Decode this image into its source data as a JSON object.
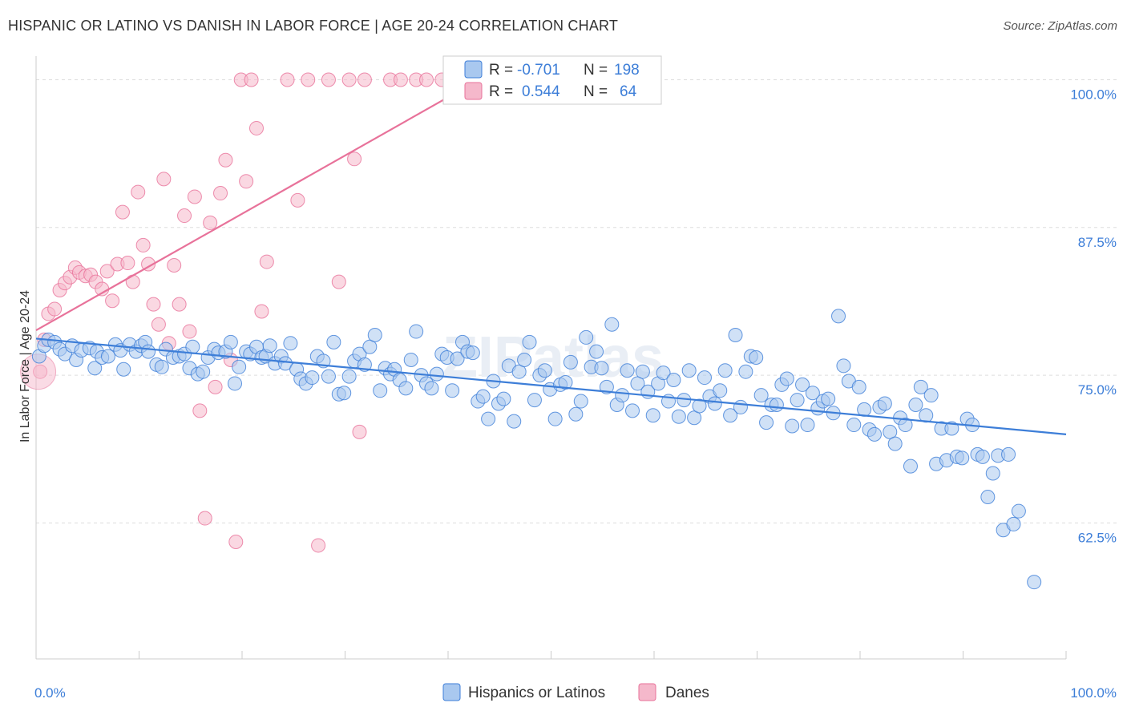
{
  "title": "HISPANIC OR LATINO VS DANISH IN LABOR FORCE | AGE 20-24 CORRELATION CHART",
  "source": "Source: ZipAtlas.com",
  "colors": {
    "blue": "#3d7ed8",
    "blue_fill": "#a9c8ef",
    "pink": "#e8729a",
    "pink_fill": "#f5b8cb",
    "grid": "#dddddd",
    "axis": "#cccccc"
  },
  "chart_data": {
    "type": "scatter",
    "ylabel": "In Labor Force | Age 20-24",
    "xlim": [
      0,
      100
    ],
    "ylim": [
      51,
      102
    ],
    "x_tick_labels": [
      "0.0%",
      "100.0%"
    ],
    "y_ticks": [
      {
        "value": 100.0,
        "label": "100.0%"
      },
      {
        "value": 87.5,
        "label": "87.5%"
      },
      {
        "value": 75.0,
        "label": "75.0%"
      },
      {
        "value": 62.5,
        "label": "62.5%"
      }
    ],
    "legend_stats": [
      {
        "r_label": "R =",
        "r_value": "-0.701",
        "n_label": "N =",
        "n_value": "198"
      },
      {
        "r_label": "R =",
        "r_value": "0.544",
        "n_label": "N =",
        "n_value": "64"
      }
    ],
    "series": [
      {
        "name": "Hispanics or Latinos",
        "trend": {
          "x": [
            0,
            100
          ],
          "y": [
            78.1,
            70.0
          ]
        },
        "points": [
          [
            0.3,
            76.6
          ],
          [
            0.8,
            77.5
          ],
          [
            1.2,
            78.0
          ],
          [
            1.8,
            77.8
          ],
          [
            2.3,
            77.2
          ],
          [
            2.8,
            76.8
          ],
          [
            3.5,
            77.5
          ],
          [
            3.9,
            76.3
          ],
          [
            4.4,
            77.1
          ],
          [
            5.2,
            77.3
          ],
          [
            5.9,
            77.0
          ],
          [
            5.7,
            75.6
          ],
          [
            6.4,
            76.5
          ],
          [
            7.0,
            76.6
          ],
          [
            7.7,
            77.6
          ],
          [
            8.2,
            77.1
          ],
          [
            8.5,
            75.5
          ],
          [
            9.1,
            77.6
          ],
          [
            9.7,
            77.0
          ],
          [
            10.2,
            77.5
          ],
          [
            10.6,
            77.8
          ],
          [
            10.9,
            77.0
          ],
          [
            11.7,
            75.9
          ],
          [
            12.2,
            75.7
          ],
          [
            12.6,
            77.2
          ],
          [
            13.3,
            76.5
          ],
          [
            13.9,
            76.6
          ],
          [
            14.4,
            76.8
          ],
          [
            14.9,
            75.6
          ],
          [
            15.2,
            77.4
          ],
          [
            15.7,
            75.1
          ],
          [
            16.2,
            75.3
          ],
          [
            16.7,
            76.5
          ],
          [
            17.3,
            77.2
          ],
          [
            17.7,
            76.9
          ],
          [
            18.4,
            77.0
          ],
          [
            18.9,
            77.8
          ],
          [
            19.3,
            74.3
          ],
          [
            19.7,
            75.7
          ],
          [
            20.4,
            77.0
          ],
          [
            20.8,
            76.8
          ],
          [
            21.4,
            77.4
          ],
          [
            21.9,
            76.5
          ],
          [
            22.3,
            76.6
          ],
          [
            22.7,
            77.5
          ],
          [
            23.2,
            76.0
          ],
          [
            23.8,
            76.6
          ],
          [
            24.2,
            76.0
          ],
          [
            24.7,
            77.7
          ],
          [
            25.3,
            75.5
          ],
          [
            25.7,
            74.7
          ],
          [
            26.2,
            74.3
          ],
          [
            26.8,
            74.8
          ],
          [
            27.3,
            76.6
          ],
          [
            27.9,
            76.2
          ],
          [
            28.4,
            74.9
          ],
          [
            28.9,
            77.8
          ],
          [
            29.4,
            73.4
          ],
          [
            29.9,
            73.5
          ],
          [
            30.4,
            74.9
          ],
          [
            30.9,
            76.2
          ],
          [
            31.4,
            76.8
          ],
          [
            31.9,
            75.9
          ],
          [
            32.4,
            77.4
          ],
          [
            32.9,
            78.4
          ],
          [
            33.4,
            73.7
          ],
          [
            33.9,
            75.6
          ],
          [
            34.4,
            75.1
          ],
          [
            34.8,
            75.5
          ],
          [
            35.3,
            74.6
          ],
          [
            35.9,
            73.9
          ],
          [
            36.4,
            76.3
          ],
          [
            36.9,
            78.7
          ],
          [
            37.4,
            75.0
          ],
          [
            37.9,
            74.3
          ],
          [
            38.4,
            73.9
          ],
          [
            38.9,
            75.1
          ],
          [
            39.4,
            76.8
          ],
          [
            39.9,
            76.5
          ],
          [
            40.4,
            73.7
          ],
          [
            40.9,
            76.4
          ],
          [
            41.4,
            77.8
          ],
          [
            41.9,
            77.0
          ],
          [
            42.4,
            76.9
          ],
          [
            42.9,
            72.8
          ],
          [
            43.4,
            73.2
          ],
          [
            43.9,
            71.3
          ],
          [
            44.4,
            74.5
          ],
          [
            44.9,
            72.6
          ],
          [
            45.4,
            73.0
          ],
          [
            45.9,
            75.8
          ],
          [
            46.4,
            71.1
          ],
          [
            46.9,
            75.3
          ],
          [
            47.4,
            76.3
          ],
          [
            47.9,
            77.8
          ],
          [
            48.4,
            72.9
          ],
          [
            48.9,
            75.0
          ],
          [
            49.4,
            75.4
          ],
          [
            49.9,
            73.8
          ],
          [
            50.4,
            71.3
          ],
          [
            50.9,
            74.2
          ],
          [
            51.4,
            74.4
          ],
          [
            51.9,
            76.1
          ],
          [
            52.4,
            71.7
          ],
          [
            52.9,
            72.8
          ],
          [
            53.4,
            78.2
          ],
          [
            53.9,
            75.7
          ],
          [
            54.4,
            77.0
          ],
          [
            54.9,
            75.6
          ],
          [
            55.4,
            74.0
          ],
          [
            55.9,
            79.3
          ],
          [
            56.4,
            72.5
          ],
          [
            56.9,
            73.3
          ],
          [
            57.4,
            75.4
          ],
          [
            57.9,
            72.0
          ],
          [
            58.4,
            74.3
          ],
          [
            58.9,
            75.3
          ],
          [
            59.4,
            73.6
          ],
          [
            59.9,
            71.6
          ],
          [
            60.4,
            74.3
          ],
          [
            60.9,
            75.2
          ],
          [
            61.4,
            72.8
          ],
          [
            61.9,
            74.6
          ],
          [
            62.4,
            71.5
          ],
          [
            62.9,
            72.9
          ],
          [
            63.4,
            75.4
          ],
          [
            63.9,
            71.4
          ],
          [
            64.4,
            72.4
          ],
          [
            64.9,
            74.8
          ],
          [
            65.4,
            73.2
          ],
          [
            65.9,
            72.6
          ],
          [
            66.4,
            73.7
          ],
          [
            66.9,
            75.4
          ],
          [
            67.4,
            71.6
          ],
          [
            67.9,
            78.4
          ],
          [
            68.4,
            72.3
          ],
          [
            68.9,
            75.3
          ],
          [
            69.4,
            76.6
          ],
          [
            69.9,
            76.5
          ],
          [
            70.4,
            73.3
          ],
          [
            70.9,
            71.0
          ],
          [
            71.4,
            72.5
          ],
          [
            71.9,
            72.5
          ],
          [
            72.4,
            74.2
          ],
          [
            72.9,
            74.7
          ],
          [
            73.4,
            70.7
          ],
          [
            73.9,
            72.9
          ],
          [
            74.4,
            74.2
          ],
          [
            74.9,
            70.8
          ],
          [
            75.4,
            73.5
          ],
          [
            75.9,
            72.2
          ],
          [
            76.4,
            72.8
          ],
          [
            76.9,
            73.0
          ],
          [
            77.4,
            71.8
          ],
          [
            77.9,
            80.0
          ],
          [
            78.4,
            75.8
          ],
          [
            78.9,
            74.5
          ],
          [
            79.4,
            70.8
          ],
          [
            79.9,
            74.0
          ],
          [
            80.4,
            72.1
          ],
          [
            80.9,
            70.4
          ],
          [
            81.4,
            70.0
          ],
          [
            81.9,
            72.3
          ],
          [
            82.4,
            72.6
          ],
          [
            82.9,
            70.2
          ],
          [
            83.4,
            69.2
          ],
          [
            83.9,
            71.4
          ],
          [
            84.4,
            70.8
          ],
          [
            84.9,
            67.3
          ],
          [
            85.4,
            72.5
          ],
          [
            85.9,
            74.0
          ],
          [
            86.4,
            71.6
          ],
          [
            86.9,
            73.3
          ],
          [
            87.4,
            67.5
          ],
          [
            87.9,
            70.5
          ],
          [
            88.4,
            67.8
          ],
          [
            88.9,
            70.5
          ],
          [
            89.4,
            68.1
          ],
          [
            89.9,
            68.0
          ],
          [
            90.4,
            71.3
          ],
          [
            90.9,
            70.8
          ],
          [
            91.4,
            68.3
          ],
          [
            91.9,
            68.1
          ],
          [
            92.4,
            64.7
          ],
          [
            92.9,
            66.7
          ],
          [
            93.4,
            68.2
          ],
          [
            93.9,
            61.9
          ],
          [
            94.4,
            68.3
          ],
          [
            94.9,
            62.4
          ],
          [
            95.4,
            63.5
          ],
          [
            96.9,
            57.5
          ]
        ]
      },
      {
        "name": "Danes",
        "trend": {
          "x": [
            0,
            43
          ],
          "y": [
            78.8,
            100.0
          ]
        },
        "points": [
          [
            0.4,
            75.3
          ],
          [
            0.8,
            78.0
          ],
          [
            1.2,
            80.2
          ],
          [
            1.8,
            80.6
          ],
          [
            2.3,
            82.2
          ],
          [
            2.8,
            82.8
          ],
          [
            3.3,
            83.3
          ],
          [
            3.8,
            84.1
          ],
          [
            4.2,
            83.7
          ],
          [
            4.8,
            83.4
          ],
          [
            5.3,
            83.5
          ],
          [
            5.8,
            82.9
          ],
          [
            6.4,
            82.3
          ],
          [
            6.9,
            83.8
          ],
          [
            7.4,
            81.3
          ],
          [
            7.9,
            84.4
          ],
          [
            8.4,
            88.8
          ],
          [
            8.9,
            84.5
          ],
          [
            9.4,
            82.9
          ],
          [
            9.9,
            90.5
          ],
          [
            10.4,
            86.0
          ],
          [
            10.9,
            84.4
          ],
          [
            11.4,
            81.0
          ],
          [
            11.9,
            79.3
          ],
          [
            12.4,
            91.6
          ],
          [
            12.9,
            77.7
          ],
          [
            13.4,
            84.3
          ],
          [
            13.9,
            81.0
          ],
          [
            14.4,
            88.5
          ],
          [
            14.9,
            78.7
          ],
          [
            15.4,
            90.1
          ],
          [
            15.9,
            72.0
          ],
          [
            16.4,
            62.9
          ],
          [
            16.9,
            87.9
          ],
          [
            17.4,
            74.0
          ],
          [
            17.9,
            90.4
          ],
          [
            18.4,
            93.2
          ],
          [
            18.9,
            76.3
          ],
          [
            19.4,
            60.9
          ],
          [
            19.9,
            100.0
          ],
          [
            20.4,
            91.4
          ],
          [
            20.9,
            100.0
          ],
          [
            21.4,
            95.9
          ],
          [
            21.9,
            80.4
          ],
          [
            22.4,
            84.6
          ],
          [
            24.4,
            100.0
          ],
          [
            25.4,
            89.8
          ],
          [
            26.4,
            100.0
          ],
          [
            27.4,
            60.6
          ],
          [
            28.4,
            100.0
          ],
          [
            29.4,
            82.9
          ],
          [
            30.4,
            100.0
          ],
          [
            30.9,
            93.3
          ],
          [
            31.4,
            70.2
          ],
          [
            31.9,
            100.0
          ],
          [
            34.4,
            100.0
          ],
          [
            35.4,
            100.0
          ],
          [
            36.9,
            100.0
          ],
          [
            37.9,
            100.0
          ],
          [
            39.4,
            100.0
          ],
          [
            40.9,
            100.0
          ],
          [
            41.9,
            100.0
          ],
          [
            43.4,
            100.0
          ],
          [
            44.9,
            100.0
          ]
        ]
      }
    ]
  },
  "legend_bottom": [
    "Hispanics or Latinos",
    "Danes"
  ],
  "watermark": "ZIPatlas"
}
